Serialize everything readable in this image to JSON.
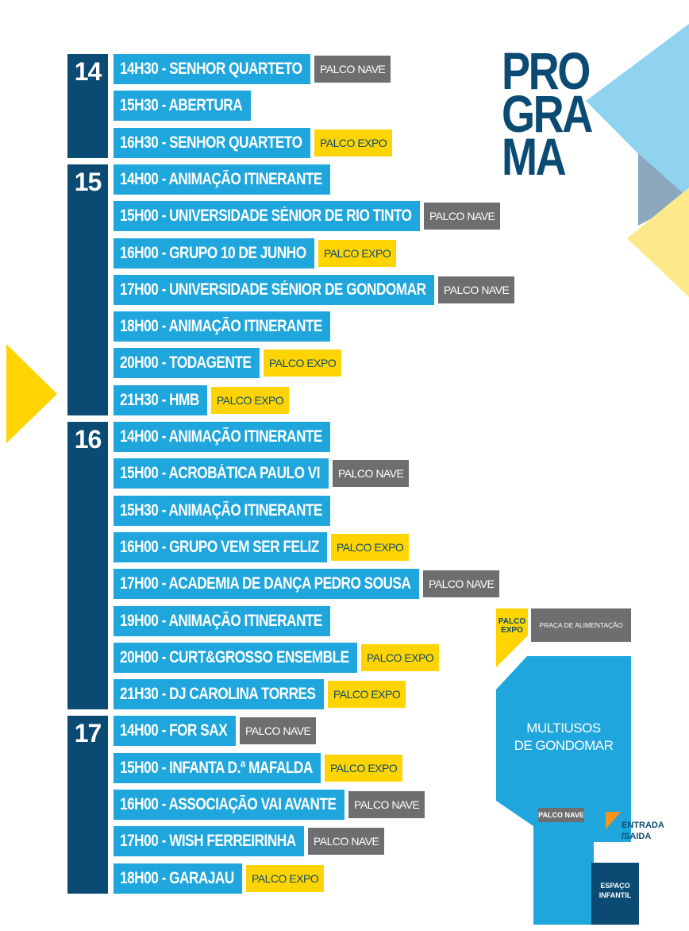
{
  "title": {
    "line1": "PRO",
    "line2": "GRA",
    "line3": "MA"
  },
  "days": [
    {
      "day": "14",
      "events": [
        {
          "text": "14H30 - SENHOR QUARTETO",
          "stage": "PALCO NAVE",
          "stage_type": "nave"
        },
        {
          "text": "15H30 - ABERTURA",
          "stage": "",
          "stage_type": ""
        },
        {
          "text": "16H30 - SENHOR QUARTETO",
          "stage": "PALCO EXPO",
          "stage_type": "expo"
        }
      ]
    },
    {
      "day": "15",
      "events": [
        {
          "text": "14H00 - ANIMAÇÃO ITINERANTE",
          "stage": "",
          "stage_type": ""
        },
        {
          "text": "15H00 - UNIVERSIDADE SÉNIOR DE RIO TINTO",
          "stage": "PALCO NAVE",
          "stage_type": "nave"
        },
        {
          "text": "16H00 - GRUPO 10 DE JUNHO",
          "stage": "PALCO EXPO",
          "stage_type": "expo"
        },
        {
          "text": "17H00 - UNIVERSIDADE SÉNIOR DE GONDOMAR",
          "stage": "PALCO NAVE",
          "stage_type": "nave"
        },
        {
          "text": "18H00 - ANIMAÇÃO ITINERANTE",
          "stage": "",
          "stage_type": ""
        },
        {
          "text": "20H00 - TODAGENTE",
          "stage": "PALCO EXPO",
          "stage_type": "expo"
        },
        {
          "text": "21H30 - HMB",
          "stage": "PALCO EXPO",
          "stage_type": "expo"
        }
      ]
    },
    {
      "day": "16",
      "events": [
        {
          "text": "14H00 - ANIMAÇÃO ITINERANTE",
          "stage": "",
          "stage_type": ""
        },
        {
          "text": "15H00 - ACROBÁTICA PAULO VI",
          "stage": "PALCO NAVE",
          "stage_type": "nave"
        },
        {
          "text": "15H30 - ANIMAÇÃO ITINERANTE",
          "stage": "",
          "stage_type": ""
        },
        {
          "text": "16H00 - GRUPO VEM SER FELIZ",
          "stage": "PALCO EXPO",
          "stage_type": "expo"
        },
        {
          "text": "17H00 - ACADEMIA DE DANÇA PEDRO SOUSA",
          "stage": "PALCO NAVE",
          "stage_type": "nave"
        },
        {
          "text": "19H00 - ANIMAÇÃO ITINERANTE",
          "stage": "",
          "stage_type": ""
        },
        {
          "text": "20H00 - CURT&GROSSO ENSEMBLE",
          "stage": "PALCO EXPO",
          "stage_type": "expo"
        },
        {
          "text": "21H30 - DJ CAROLINA TORRES",
          "stage": "PALCO EXPO",
          "stage_type": "expo"
        }
      ]
    },
    {
      "day": "17",
      "events": [
        {
          "text": "14H00 - FOR SAX",
          "stage": "PALCO NAVE",
          "stage_type": "nave"
        },
        {
          "text": "15H00 - INFANTA D.ª MAFALDA",
          "stage": "PALCO EXPO",
          "stage_type": "expo"
        },
        {
          "text": "16H00 - ASSOCIAÇÃO VAI AVANTE",
          "stage": "PALCO NAVE",
          "stage_type": "nave"
        },
        {
          "text": "17H00 - WISH FERREIRINHA",
          "stage": "PALCO NAVE",
          "stage_type": "nave"
        },
        {
          "text": "18H00 - GARAJAU",
          "stage": "PALCO EXPO",
          "stage_type": "expo"
        }
      ]
    }
  ],
  "map": {
    "palco_expo_line1": "PALCO",
    "palco_expo_line2": "EXPO",
    "praca": "PRAÇA DE ALIMENTAÇÃO",
    "venue_line1": "MULTIUSOS",
    "venue_line2": "DE GONDOMAR",
    "palco_nave": "PALCO NAVE",
    "entrada_line1": "ENTRADA",
    "entrada_line2": "/SAIDA",
    "espaco_line1": "ESPAÇO",
    "espaco_line2": "INFANTIL"
  },
  "colors": {
    "navy": "#0b4b73",
    "cyan": "#1fa6dc",
    "yellow": "#ffd400",
    "gray": "#6d6e70",
    "orange": "#f7941d"
  }
}
